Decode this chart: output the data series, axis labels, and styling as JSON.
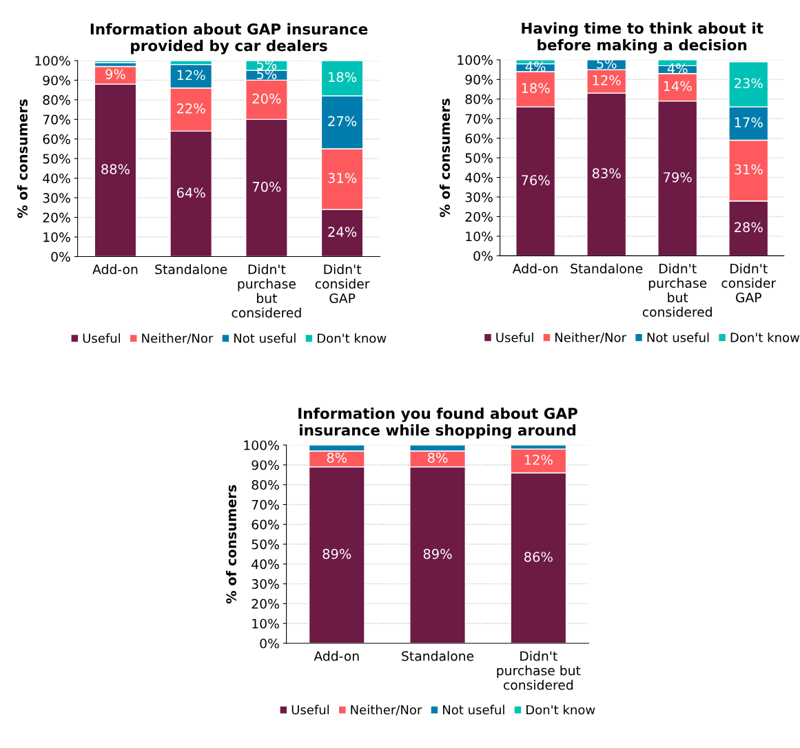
{
  "chart_data": [
    {
      "type": "bar",
      "stacked": true,
      "title": "Information about GAP insurance\nprovided by car dealers",
      "ylabel": "% of consumers",
      "categories": [
        "Add-on",
        "Standalone",
        "Didn't\npurchase\nbut\nconsidered",
        "Didn't\nconsider\nGAP"
      ],
      "ylim": [
        0,
        100
      ],
      "yticks": [
        {
          "value": 0,
          "label": "0%"
        },
        {
          "value": 10,
          "label": "10%"
        },
        {
          "value": 20,
          "label": "20%"
        },
        {
          "value": 30,
          "label": "30%"
        },
        {
          "value": 40,
          "label": "40%"
        },
        {
          "value": 50,
          "label": "50%"
        },
        {
          "value": 60,
          "label": "60%"
        },
        {
          "value": 70,
          "label": "70%"
        },
        {
          "value": 80,
          "label": "80%"
        },
        {
          "value": 90,
          "label": "90%"
        },
        {
          "value": 100,
          "label": "100%"
        }
      ],
      "grid": "y",
      "legend": "bottom",
      "series": [
        {
          "name": "Useful",
          "color": "#6d1a45",
          "values": [
            88,
            64,
            70,
            24
          ],
          "value_labels": [
            "88%",
            "64%",
            "70%",
            "24%"
          ]
        },
        {
          "name": "Neither/Nor",
          "color": "#fe5a5d",
          "values": [
            9,
            22,
            20,
            31
          ],
          "value_labels": [
            "9%",
            "22%",
            "20%",
            "31%"
          ]
        },
        {
          "name": "Not useful",
          "color": "#007dad",
          "values": [
            2,
            12,
            5,
            27
          ],
          "value_labels": [
            null,
            "12%",
            "5%",
            "27%"
          ]
        },
        {
          "name": "Don't know",
          "color": "#00c1b5",
          "values": [
            1,
            2,
            5,
            18
          ],
          "value_labels": [
            null,
            null,
            "5%",
            "18%"
          ]
        }
      ]
    },
    {
      "type": "bar",
      "stacked": true,
      "title": "Having time to think about it\nbefore making a decision",
      "ylabel": "% of consumers",
      "categories": [
        "Add-on",
        "Standalone",
        "Didn't\npurchase\nbut\nconsidered",
        "Didn't\nconsider\nGAP"
      ],
      "ylim": [
        0,
        100
      ],
      "yticks": [
        {
          "value": 0,
          "label": "0%"
        },
        {
          "value": 10,
          "label": "10%"
        },
        {
          "value": 20,
          "label": "20%"
        },
        {
          "value": 30,
          "label": "30%"
        },
        {
          "value": 40,
          "label": "40%"
        },
        {
          "value": 50,
          "label": "50%"
        },
        {
          "value": 60,
          "label": "60%"
        },
        {
          "value": 70,
          "label": "70%"
        },
        {
          "value": 80,
          "label": "80%"
        },
        {
          "value": 90,
          "label": "90%"
        },
        {
          "value": 100,
          "label": "100%"
        }
      ],
      "grid": "y",
      "legend": "bottom",
      "series": [
        {
          "name": "Useful",
          "color": "#6d1a45",
          "values": [
            76,
            83,
            79,
            28
          ],
          "value_labels": [
            "76%",
            "83%",
            "79%",
            "28%"
          ]
        },
        {
          "name": "Neither/Nor",
          "color": "#fe5a5d",
          "values": [
            18,
            12,
            14,
            31
          ],
          "value_labels": [
            "18%",
            "12%",
            "14%",
            "31%"
          ]
        },
        {
          "name": "Not useful",
          "color": "#007dad",
          "values": [
            4,
            5,
            4,
            17
          ],
          "value_labels": [
            "4%",
            "5%",
            "4%",
            "17%"
          ]
        },
        {
          "name": "Don't know",
          "color": "#00c1b5",
          "values": [
            2,
            null,
            3,
            23
          ],
          "value_labels": [
            null,
            null,
            null,
            "23%"
          ]
        }
      ]
    },
    {
      "type": "bar",
      "stacked": true,
      "title": "Information you found about GAP\ninsurance while shopping around",
      "ylabel": "% of consumers",
      "categories": [
        "Add-on",
        "Standalone",
        "Didn't\npurchase but\nconsidered"
      ],
      "ylim": [
        0,
        100
      ],
      "yticks": [
        {
          "value": 0,
          "label": "0%"
        },
        {
          "value": 10,
          "label": "10%"
        },
        {
          "value": 20,
          "label": "20%"
        },
        {
          "value": 30,
          "label": "30%"
        },
        {
          "value": 40,
          "label": "40%"
        },
        {
          "value": 50,
          "label": "50%"
        },
        {
          "value": 60,
          "label": "60%"
        },
        {
          "value": 70,
          "label": "70%"
        },
        {
          "value": 80,
          "label": "80%"
        },
        {
          "value": 90,
          "label": "90%"
        },
        {
          "value": 100,
          "label": "100%"
        }
      ],
      "grid": "y",
      "legend": "bottom",
      "series": [
        {
          "name": "Useful",
          "color": "#6d1a45",
          "values": [
            89,
            89,
            86
          ],
          "value_labels": [
            "89%",
            "89%",
            "86%"
          ]
        },
        {
          "name": "Neither/Nor",
          "color": "#fe5a5d",
          "values": [
            8,
            8,
            12
          ],
          "value_labels": [
            "8%",
            "8%",
            "12%"
          ]
        },
        {
          "name": "Not useful",
          "color": "#007dad",
          "values": [
            3,
            3,
            2
          ],
          "value_labels": [
            null,
            null,
            null
          ]
        },
        {
          "name": "Don't know",
          "color": "#00c1b5",
          "values": [
            null,
            null,
            null
          ],
          "value_labels": [
            null,
            null,
            null
          ]
        }
      ]
    }
  ]
}
